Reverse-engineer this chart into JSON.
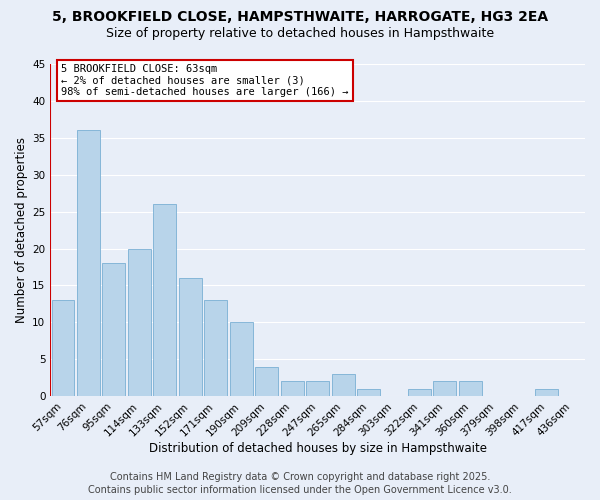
{
  "title": "5, BROOKFIELD CLOSE, HAMPSTHWAITE, HARROGATE, HG3 2EA",
  "subtitle": "Size of property relative to detached houses in Hampsthwaite",
  "xlabel": "Distribution of detached houses by size in Hampsthwaite",
  "ylabel": "Number of detached properties",
  "categories": [
    "57sqm",
    "76sqm",
    "95sqm",
    "114sqm",
    "133sqm",
    "152sqm",
    "171sqm",
    "190sqm",
    "209sqm",
    "228sqm",
    "247sqm",
    "265sqm",
    "284sqm",
    "303sqm",
    "322sqm",
    "341sqm",
    "360sqm",
    "379sqm",
    "398sqm",
    "417sqm",
    "436sqm"
  ],
  "values": [
    13,
    36,
    18,
    20,
    26,
    16,
    13,
    10,
    4,
    2,
    2,
    3,
    1,
    0,
    1,
    2,
    2,
    0,
    0,
    1,
    0
  ],
  "bar_color": "#b8d4ea",
  "bar_edge_color": "#7aafd4",
  "ylim": [
    0,
    45
  ],
  "yticks": [
    0,
    5,
    10,
    15,
    20,
    25,
    30,
    35,
    40,
    45
  ],
  "vline_color": "#cc0000",
  "annotation_title": "5 BROOKFIELD CLOSE: 63sqm",
  "annotation_line1": "← 2% of detached houses are smaller (3)",
  "annotation_line2": "98% of semi-detached houses are larger (166) →",
  "annotation_box_color": "#ffffff",
  "annotation_box_edge": "#cc0000",
  "footer1": "Contains HM Land Registry data © Crown copyright and database right 2025.",
  "footer2": "Contains public sector information licensed under the Open Government Licence v3.0.",
  "background_color": "#e8eef8",
  "plot_background": "#e8eef8",
  "grid_color": "#ffffff",
  "title_fontsize": 10,
  "subtitle_fontsize": 9,
  "axis_label_fontsize": 8.5,
  "tick_fontsize": 7.5,
  "footer_fontsize": 7
}
